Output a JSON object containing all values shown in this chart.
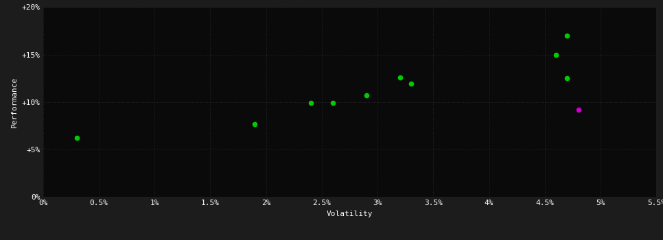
{
  "background_color": "#1c1c1c",
  "plot_bg_color": "#0a0a0a",
  "grid_color": "#2a2a2a",
  "text_color": "#ffffff",
  "xlabel": "Volatility",
  "ylabel": "Performance",
  "xlim": [
    0.0,
    0.055
  ],
  "ylim": [
    0.0,
    0.2
  ],
  "x_ticks": [
    0.0,
    0.005,
    0.01,
    0.015,
    0.02,
    0.025,
    0.03,
    0.035,
    0.04,
    0.045,
    0.05,
    0.055
  ],
  "y_ticks": [
    0.0,
    0.05,
    0.1,
    0.15,
    0.2
  ],
  "x_tick_labels": [
    "0%",
    "0.5%",
    "1%",
    "1.5%",
    "2%",
    "2.5%",
    "3%",
    "3.5%",
    "4%",
    "4.5%",
    "5%",
    "5.5%"
  ],
  "y_tick_labels": [
    "0%",
    "+5%",
    "+10%",
    "+15%",
    "+20%"
  ],
  "green_points": [
    [
      0.003,
      0.062
    ],
    [
      0.019,
      0.077
    ],
    [
      0.024,
      0.099
    ],
    [
      0.026,
      0.099
    ],
    [
      0.029,
      0.107
    ],
    [
      0.032,
      0.126
    ],
    [
      0.033,
      0.119
    ],
    [
      0.047,
      0.125
    ],
    [
      0.046,
      0.15
    ],
    [
      0.047,
      0.17
    ]
  ],
  "magenta_points": [
    [
      0.048,
      0.092
    ]
  ],
  "point_size": 30,
  "grid_linestyle": ":",
  "grid_linewidth": 0.6,
  "xlabel_fontsize": 8,
  "ylabel_fontsize": 8,
  "tick_fontsize": 8
}
